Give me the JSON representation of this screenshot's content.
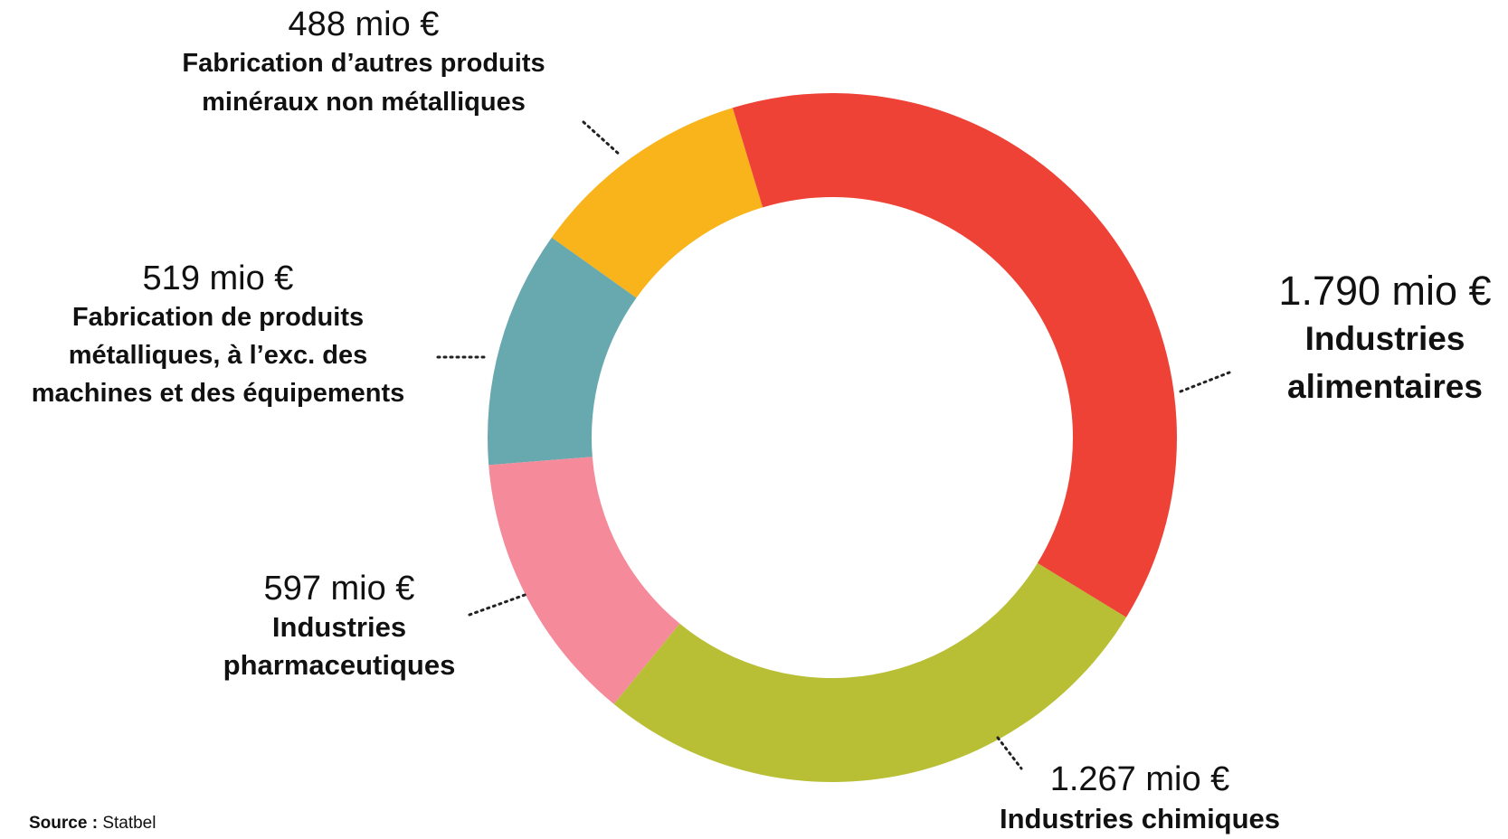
{
  "chart_data": {
    "type": "donut",
    "categories": [
      "Industries alimentaires",
      "Industries chimiques",
      "Industries\npharmaceutiques",
      "Fabrication de produits\nmétalliques, à l’exc. des\nmachines et des équipements",
      "Fabrication d’autres produits\nminéraux non métalliques"
    ],
    "values": [
      1790,
      1267,
      597,
      519,
      488
    ],
    "value_labels": [
      "1.790 mio €",
      "1.267 mio €",
      "597 mio €",
      "519 mio €",
      "488 mio €"
    ],
    "colors": [
      "#ee4237",
      "#b9bf34",
      "#f48a9a",
      "#68a9b0",
      "#f9b31b"
    ]
  },
  "source_label": "Source :",
  "source": "Statbel"
}
